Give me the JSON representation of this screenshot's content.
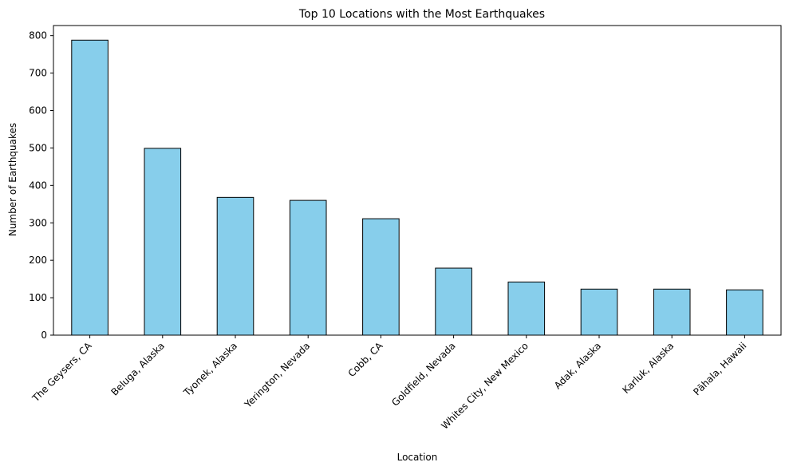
{
  "chart_data": {
    "type": "bar",
    "title": "Top 10 Locations with the Most Earthquakes",
    "xlabel": "Location",
    "ylabel": "Number of Earthquakes",
    "categories": [
      "The Geysers, CA",
      "Beluga, Alaska",
      "Tyonek, Alaska",
      "Yerington, Nevada",
      "Cobb, CA",
      "Goldfield, Nevada",
      "Whites City, New Mexico",
      "Adak, Alaska",
      "Karluk, Alaska",
      "Pāhala, Hawaii"
    ],
    "values": [
      788,
      499,
      368,
      360,
      311,
      179,
      142,
      123,
      123,
      121
    ],
    "ylim": [
      0,
      827
    ],
    "yticks": [
      0,
      100,
      200,
      300,
      400,
      500,
      600,
      700,
      800
    ],
    "bar_color": "#87ceeb",
    "edge_color": "#000000",
    "grid": false,
    "legend": "none"
  }
}
